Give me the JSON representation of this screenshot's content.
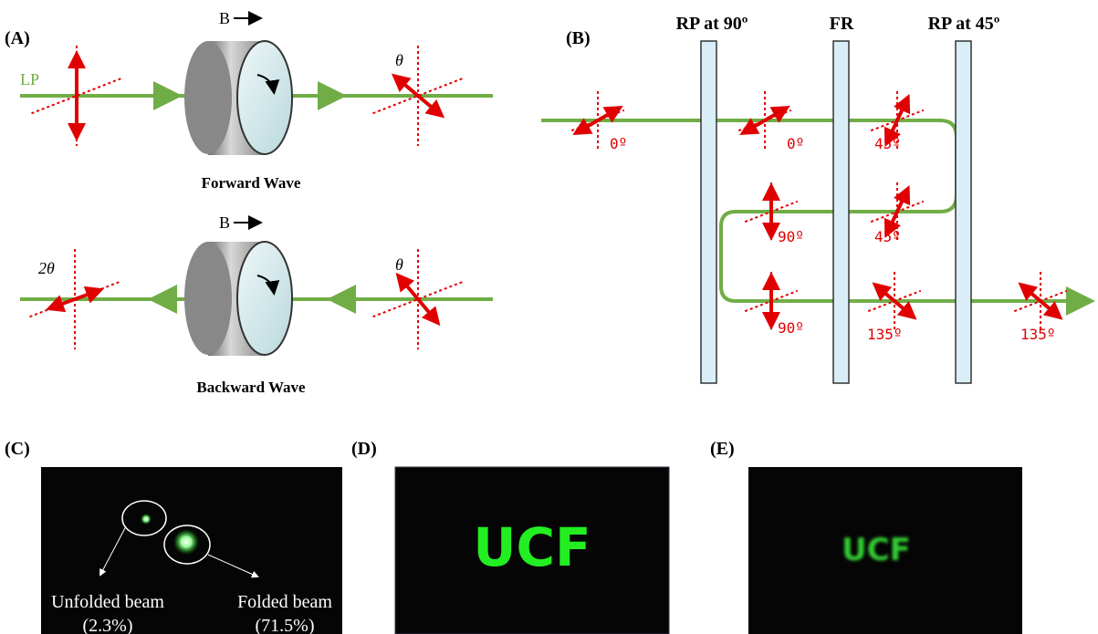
{
  "panel_a": {
    "label": "(A)",
    "field_forward": "B",
    "field_backward": "B",
    "lp": "LP",
    "theta_forward": "θ",
    "theta_backward": "θ",
    "two_theta": "2θ",
    "forward_caption": "Forward Wave",
    "backward_caption": "Backward Wave"
  },
  "panel_b": {
    "label": "(B)",
    "plates": [
      "RP at 90º",
      "FR",
      "RP at 45º"
    ],
    "angles": [
      "0º",
      "0º",
      "45º",
      "90º",
      "45º",
      "90º",
      "135º",
      "135º"
    ]
  },
  "panel_c": {
    "label": "(C)",
    "unfolded_name": "Unfolded beam",
    "unfolded_share": "(2.3%)",
    "folded_name": "Folded beam",
    "folded_share": "(71.5%)"
  },
  "panel_d": {
    "label": "(D)",
    "image_text": "UCF"
  },
  "panel_e": {
    "label": "(E)",
    "image_text": "UCF"
  }
}
